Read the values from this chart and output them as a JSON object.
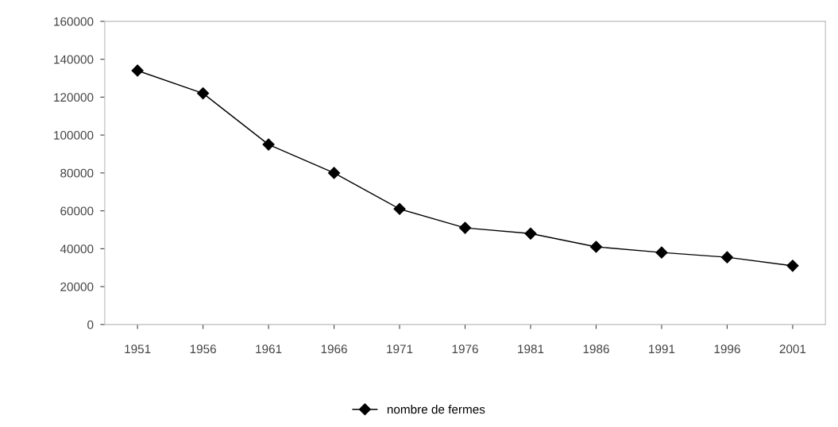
{
  "chart_data": {
    "type": "line",
    "categories": [
      "1951",
      "1956",
      "1961",
      "1966",
      "1971",
      "1976",
      "1981",
      "1986",
      "1991",
      "1996",
      "2001"
    ],
    "series": [
      {
        "name": "nombre de fermes",
        "color": "#000000",
        "values": [
          134000,
          122000,
          95000,
          80000,
          61000,
          51000,
          48000,
          41000,
          38000,
          35500,
          31000
        ]
      }
    ],
    "ylim": [
      0,
      160000
    ],
    "yticks": [
      0,
      20000,
      40000,
      60000,
      80000,
      100000,
      120000,
      140000,
      160000
    ],
    "grid": false,
    "legend": "bottom",
    "marker": "diamond",
    "line_style": "solid"
  }
}
